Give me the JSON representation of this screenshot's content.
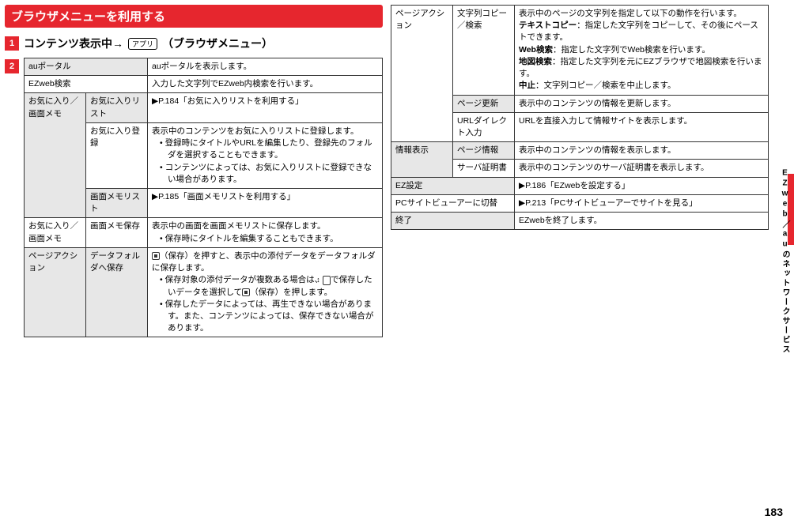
{
  "titleBar": "ブラウザメニューを利用する",
  "step1": {
    "num": "1",
    "text": "コンテンツ表示中→",
    "key": "アプリ",
    "suffix": "（ブラウザメニュー）"
  },
  "step2Num": "2",
  "table1": {
    "colWidths": [
      "78px",
      "78px",
      ""
    ],
    "rows": [
      {
        "cells": [
          {
            "text": "auポータル",
            "colspan": 2,
            "grey": true
          },
          {
            "text": "auポータルを表示します。"
          }
        ]
      },
      {
        "cells": [
          {
            "text": "EZweb検索",
            "colspan": 2,
            "grey": false
          },
          {
            "text": "入力した文字列でEZweb内検索を行います。"
          }
        ]
      },
      {
        "cells": [
          {
            "text": "お気に入り／画面メモ",
            "rowspan": 3,
            "grey": true
          },
          {
            "text": "お気に入りリスト",
            "grey": true
          },
          {
            "text": "▶P.184「お気に入りリストを利用する」"
          }
        ]
      },
      {
        "cells": [
          {
            "text": "お気に入り登録",
            "grey": false
          },
          {
            "html": "表示中のコンテンツをお気に入りリストに登録します。<div class=\"bullet\"><div class=\"bullet-item\">• 登録時にタイトルやURLを編集したり、登録先のフォルダを選択することもできます。</div><div class=\"bullet-item\">• コンテンツによっては、お気に入りリストに登録できない場合があります。</div></div>"
          }
        ]
      },
      {
        "cells": [
          {
            "text": "画面メモリスト",
            "grey": true
          },
          {
            "text": "▶P.185「画面メモリストを利用する」"
          }
        ]
      },
      {
        "cells": [
          {
            "text": "お気に入り／画面メモ",
            "grey": false
          },
          {
            "text": "画面メモ保存",
            "grey": false
          },
          {
            "html": "表示中の画面を画面メモリストに保存します。<div class=\"bullet\"><div class=\"bullet-item\">• 保存時にタイトルを編集することもできます。</div></div>"
          }
        ]
      },
      {
        "cells": [
          {
            "text": "ページアクション",
            "grey": true
          },
          {
            "text": "データフォルダへ保存",
            "grey": true
          },
          {
            "html": "<span class=\"small-btn\"></span>（保存）を押すと、表示中の添付データをデータフォルダに保存します。<div class=\"bullet\"><div class=\"bullet-item\">• 保存対象の添付データが複数ある場合は、<span class=\"updown-btn\"></span>で保存したいデータを選択して<span class=\"small-btn\"></span>（保存）を押します。</div><div class=\"bullet-item\">• 保存したデータによっては、再生できない場合があります。また、コンテンツによっては、保存できない場合があります。</div></div>"
          }
        ]
      }
    ]
  },
  "table2": {
    "colWidths": [
      "78px",
      "78px",
      ""
    ],
    "rows": [
      {
        "cells": [
          {
            "text": "ページアクション",
            "rowspan": 3,
            "grey": false
          },
          {
            "text": "文字列コピー／検索",
            "grey": false
          },
          {
            "html": "表示中のページの文字列を指定して以下の動作を行います。<br><b>テキストコピー</b>：指定した文字列をコピーして、その後にペーストできます。<br><b>Web検索</b>：指定した文字列でWeb検索を行います。<br><b>地図検索</b>：指定した文字列を元にEZブラウザで地図検索を行います。<br><b>中止</b>：文字列コピー／検索を中止します。"
          }
        ]
      },
      {
        "cells": [
          {
            "text": "ページ更新",
            "grey": true
          },
          {
            "text": "表示中のコンテンツの情報を更新します。"
          }
        ]
      },
      {
        "cells": [
          {
            "text": "URLダイレクト入力",
            "grey": false
          },
          {
            "text": "URLを直接入力して情報サイトを表示します。"
          }
        ]
      },
      {
        "cells": [
          {
            "text": "情報表示",
            "rowspan": 2,
            "grey": true
          },
          {
            "text": "ページ情報",
            "grey": true
          },
          {
            "text": "表示中のコンテンツの情報を表示します。"
          }
        ]
      },
      {
        "cells": [
          {
            "text": "サーバ証明書",
            "grey": false
          },
          {
            "text": "表示中のコンテンツのサーバ証明書を表示します。"
          }
        ]
      },
      {
        "cells": [
          {
            "text": "EZ設定",
            "colspan": 2,
            "grey": true
          },
          {
            "text": "▶P.186「EZwebを設定する」"
          }
        ]
      },
      {
        "cells": [
          {
            "text": "PCサイトビューアーに切替",
            "colspan": 2,
            "grey": false
          },
          {
            "text": "▶P.213「PCサイトビューアーでサイトを見る」"
          }
        ]
      },
      {
        "cells": [
          {
            "text": "終了",
            "colspan": 2,
            "grey": true
          },
          {
            "text": "EZwebを終了します。"
          }
        ]
      }
    ]
  },
  "sideLabel": "EZweb／auのネットワークサービス",
  "pageNum": "183"
}
